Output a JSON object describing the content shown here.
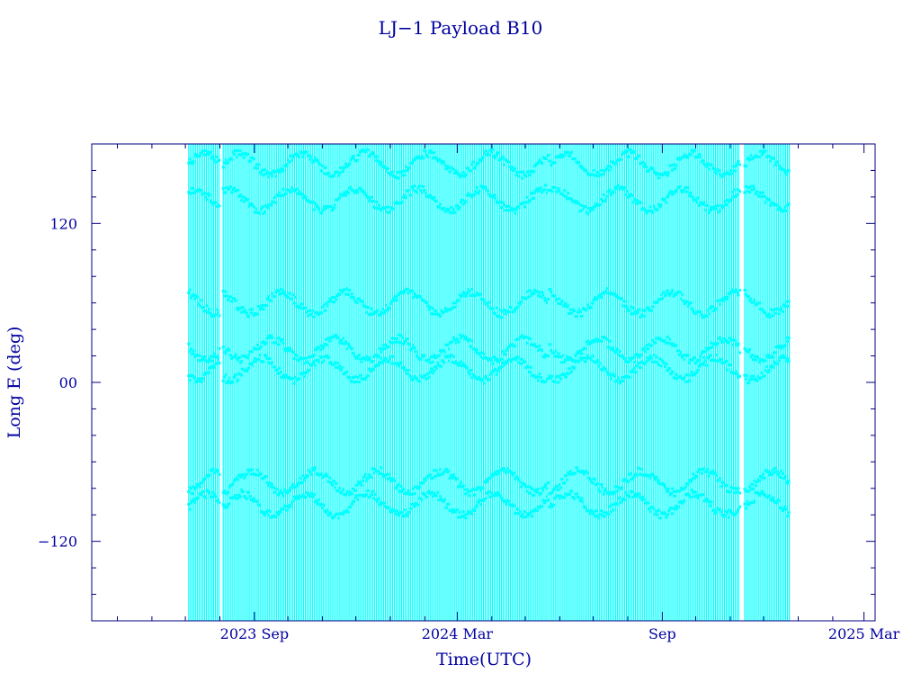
{
  "chart_data": {
    "type": "line",
    "title": "LJ−1 Payload B10",
    "xlabel": "Time(UTC)",
    "ylabel": "Long E (deg)",
    "x_ticks": [
      "2023 Sep",
      "2024 Mar",
      "Sep",
      "2025 Mar"
    ],
    "x_tick_dates": [
      "2023-09-01",
      "2024-03-01",
      "2024-09-01",
      "2025-03-01"
    ],
    "xlim": [
      "2023-04-08",
      "2025-03-11"
    ],
    "y_ticks": [
      "−120",
      "00",
      "120"
    ],
    "y_tick_values": [
      -120,
      0,
      120
    ],
    "ylim": [
      -180,
      180
    ],
    "grid": false,
    "series": [
      {
        "coverage": [
          [
            "2023-07-04",
            "2023-08-01"
          ],
          [
            "2023-08-04",
            "2024-05-22"
          ],
          [
            "2024-05-23",
            "2024-11-10"
          ],
          [
            "2024-11-14",
            "2024-12-24"
          ]
        ],
        "band_centers": [
          165,
          138,
          60,
          25,
          10,
          -75,
          -92
        ],
        "color": "#00ffff"
      }
    ],
    "colors": {
      "axis": "#000080",
      "text": "#0000a0",
      "data": "#00ffff"
    }
  }
}
